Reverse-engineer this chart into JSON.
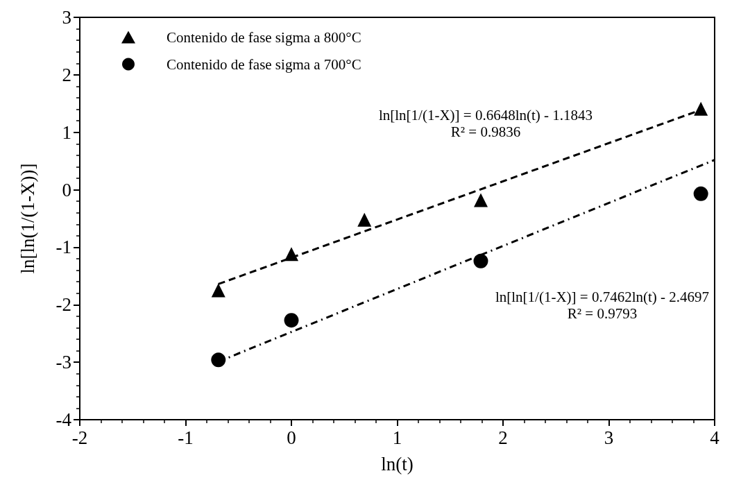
{
  "chart_data": {
    "type": "scatter",
    "xlabel": "ln(t)",
    "ylabel": "ln[ln(1/(1-X))]",
    "xlim": [
      -2,
      4
    ],
    "ylim": [
      -4,
      3
    ],
    "xticks": [
      -2,
      -1,
      0,
      1,
      2,
      3,
      4
    ],
    "yticks": [
      -4,
      -3,
      -2,
      -1,
      0,
      1,
      2,
      3
    ],
    "grid": false,
    "legend": "top left",
    "series": [
      {
        "name": "Contenido de fase sigma a 800°C",
        "color": "#000000",
        "marker": "triangle",
        "x": [
          -0.69,
          0,
          0.69,
          1.79,
          3.87
        ],
        "values": [
          -1.75,
          -1.12,
          -0.52,
          -0.18,
          1.41
        ]
      },
      {
        "name": "Contenido de fase sigma a 700°C",
        "color": "#000000",
        "marker": "circle",
        "x": [
          -0.69,
          0,
          1.79,
          3.87
        ],
        "values": [
          -2.96,
          -2.27,
          -1.24,
          -0.07
        ]
      },
      {
        "type": "line",
        "color": "#000000",
        "marker": "none",
        "line_style": "dashed",
        "x": [
          -0.69,
          3.87
        ],
        "values": [
          -1.64,
          1.39
        ]
      },
      {
        "type": "line",
        "color": "#000000",
        "marker": "none",
        "line_style": "dashdot",
        "x": [
          -0.69,
          4
        ],
        "values": [
          -2.99,
          0.52
        ]
      }
    ],
    "annotations": [
      "ln[ln[1/(1-X)] = 0.6648ln(t) - 1.1843\nR² = 0.9836",
      "ln[ln[1/(1-X)] = 0.7462ln(t) - 2.4697\nR² = 0.9793"
    ]
  }
}
